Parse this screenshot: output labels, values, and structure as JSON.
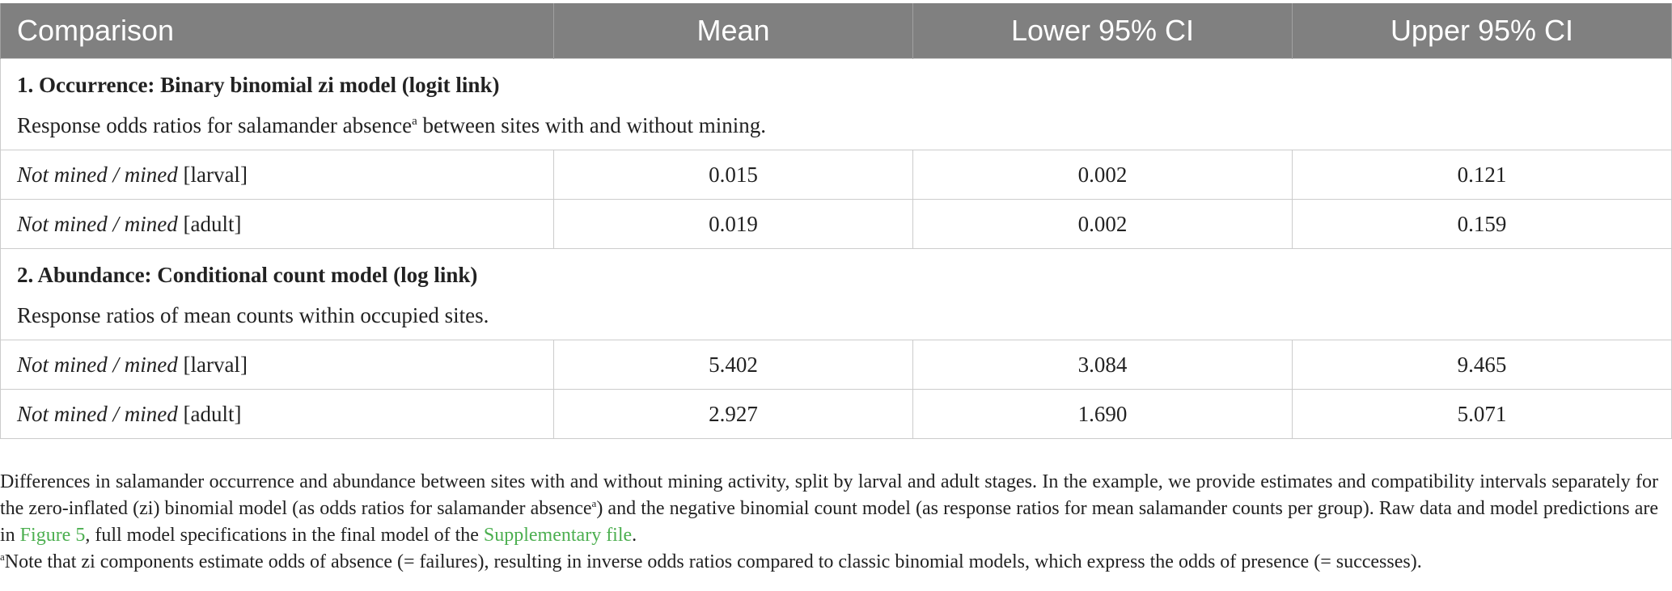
{
  "table": {
    "headers": [
      "Comparison",
      "Mean",
      "Lower 95% CI",
      "Upper 95% CI"
    ],
    "sections": [
      {
        "title": "1. Occurrence: Binary binomial zi model (logit link)",
        "desc_before": "Response odds ratios for salamander absence",
        "desc_sup": "a",
        "desc_after": " between sites with and without mining.",
        "rows": [
          {
            "label_italic": "Not mined / mined",
            "label_rest": " [larval]",
            "mean": "0.015",
            "lower": "0.002",
            "upper": "0.121"
          },
          {
            "label_italic": "Not mined / mined",
            "label_rest": " [adult]",
            "mean": "0.019",
            "lower": "0.002",
            "upper": "0.159"
          }
        ]
      },
      {
        "title": "2. Abundance: Conditional count model (log link)",
        "desc_before": "Response ratios of mean counts within occupied sites.",
        "desc_sup": "",
        "desc_after": "",
        "rows": [
          {
            "label_italic": "Not mined / mined",
            "label_rest": " [larval]",
            "mean": "5.402",
            "lower": "3.084",
            "upper": "9.465"
          },
          {
            "label_italic": "Not mined / mined",
            "label_rest": " [adult]",
            "mean": "2.927",
            "lower": "1.690",
            "upper": "5.071"
          }
        ]
      }
    ]
  },
  "notes": {
    "p1_a": "Differences in salamander occurrence and abundance between sites with and without mining activity, split by larval and adult stages. In the example, we provide estimates and compatibility intervals separately for the zero-inflated (zi) binomial model (as odds ratios for salamander absence",
    "p1_sup": "a",
    "p1_b": ") and the negative binomial count model (as response ratios for mean salamander counts per group). Raw data and model predictions are in ",
    "p1_link1": "Figure 5",
    "p1_c": ", full model specifications in the final model of the ",
    "p1_link2": "Supplementary file",
    "p1_d": ".",
    "p2_sup": "a",
    "p2_text": "Note that zi components estimate odds of absence (= failures), resulting in inverse odds ratios compared to classic binomial models, which express the odds of presence (= successes).",
    "link_color": "#4caf50"
  }
}
